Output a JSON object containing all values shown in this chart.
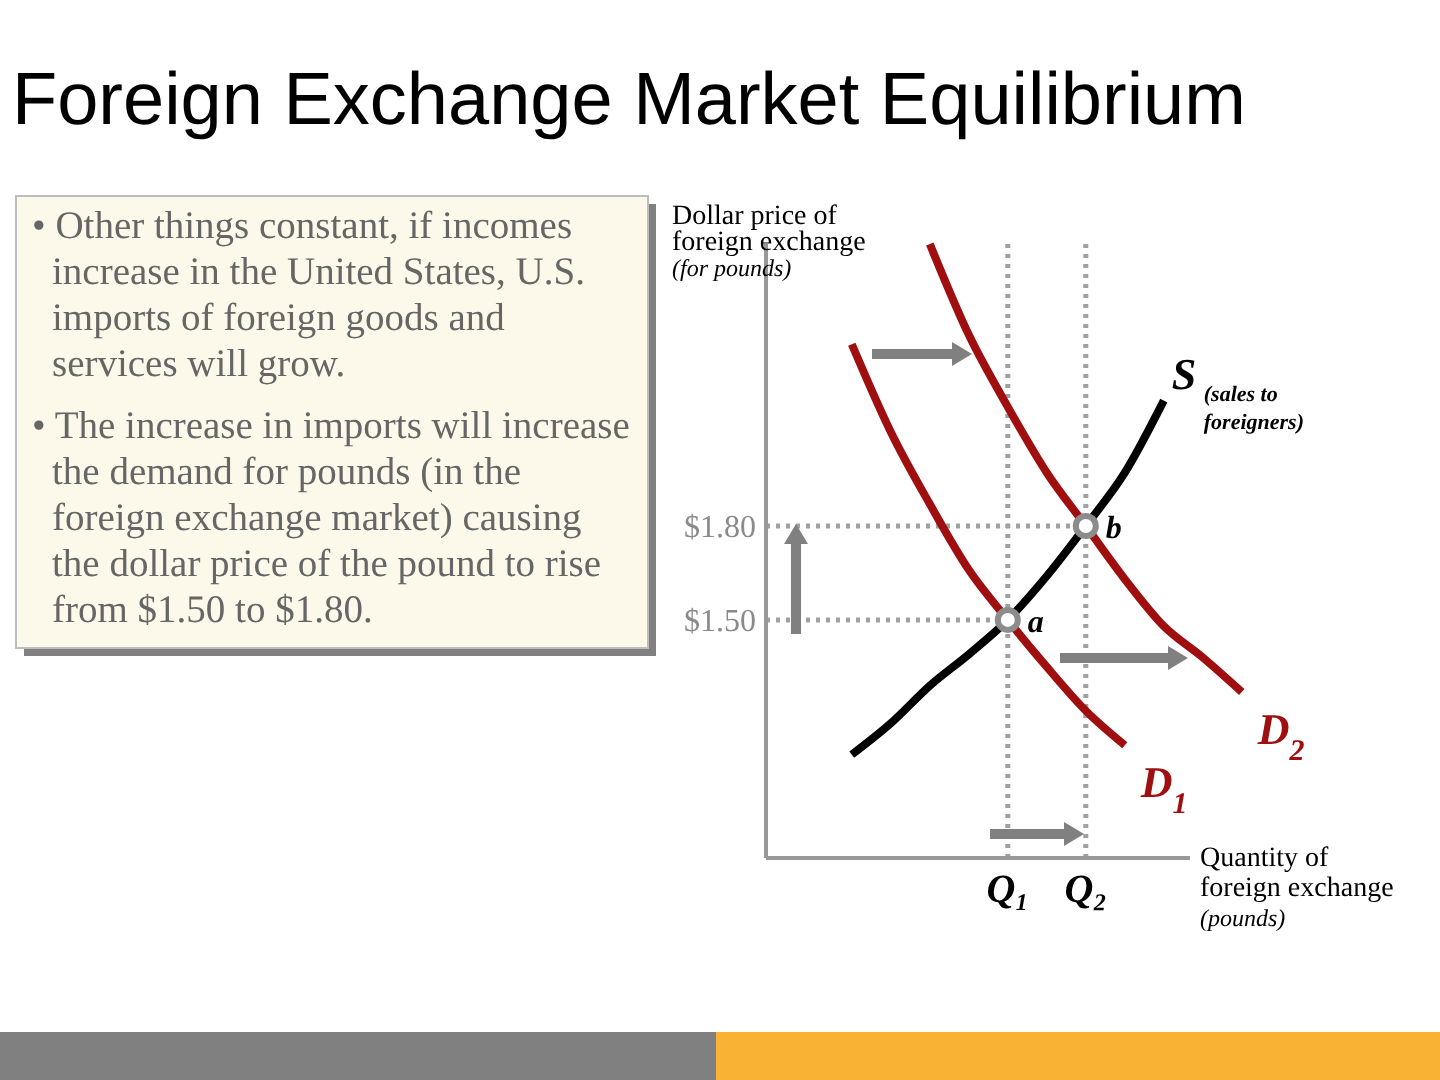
{
  "chart_data": {
    "type": "line",
    "title": "Foreign Exchange Market Equilibrium",
    "ylabel": "Dollar price of foreign exchange $_{(for pounds)}$",
    "xlabel": "Quantity of foreign exchange $_{(pounds)}$",
    "categories": [
      null,
      null,
      null,
      null,
      null,
      null,
      "Q₁",
      null,
      "Q₂",
      null,
      null,
      null,
      null
    ],
    "ylim": [
      0.74,
      2.7
    ],
    "yticks": [
      {
        "value": 1.5,
        "label": "$1.50"
      },
      {
        "value": 1.8,
        "label": "$1.80"
      }
    ],
    "series": [
      {
        "name": "S$_{(sales to foreigners)}$",
        "color": "#000000",
        "values": [
          null,
          null,
          1.07,
          1.17,
          1.29,
          1.39,
          1.5,
          1.64,
          1.8,
          1.97,
          2.2,
          null,
          null
        ]
      },
      {
        "name": "D$_{1}$",
        "color": "#a00f0f",
        "values": [
          null,
          null,
          2.38,
          2.1,
          1.87,
          1.66,
          1.5,
          1.35,
          1.21,
          1.1,
          null,
          null,
          null
        ]
      },
      {
        "name": "D$_{2}$",
        "color": "#a00f0f",
        "values": [
          null,
          null,
          null,
          null,
          2.7,
          2.41,
          2.18,
          1.97,
          1.8,
          1.63,
          1.48,
          1.38,
          1.27
        ]
      },
      {
        "type": "scatter",
        "color": "#8c8c8c",
        "marker": "circle",
        "values": [
          null,
          null,
          null,
          null,
          null,
          null,
          1.5,
          null,
          1.8,
          null,
          null,
          null,
          null
        ]
      }
    ],
    "ref_lines": [
      {
        "axis": "y",
        "value": 1.8,
        "color": "#a0a0a0",
        "line_style": "dotted"
      },
      {
        "axis": "y",
        "value": 1.5,
        "color": "#a0a0a0",
        "line_style": "dotted"
      },
      {
        "axis": "x",
        "value": "Q₁",
        "color": "#a0a0a0",
        "line_style": "dotted"
      },
      {
        "axis": "x",
        "value": "Q₂",
        "color": "#a0a0a0",
        "line_style": "dotted"
      }
    ],
    "annotations": [
      "• Other things constant, if incomes increase in the United States, U.S. imports of foreign goods and services will grow.",
      "• The increase in imports will increase the demand for pounds (in the foreign exchange market) causing the dollar price of the pound to rise from $1.50 to $1.80.",
      {
        "text": "a",
        "x": "Q₁",
        "y": 1.5
      },
      {
        "text": "b",
        "x": "Q₂",
        "y": 1.8
      }
    ]
  }
}
